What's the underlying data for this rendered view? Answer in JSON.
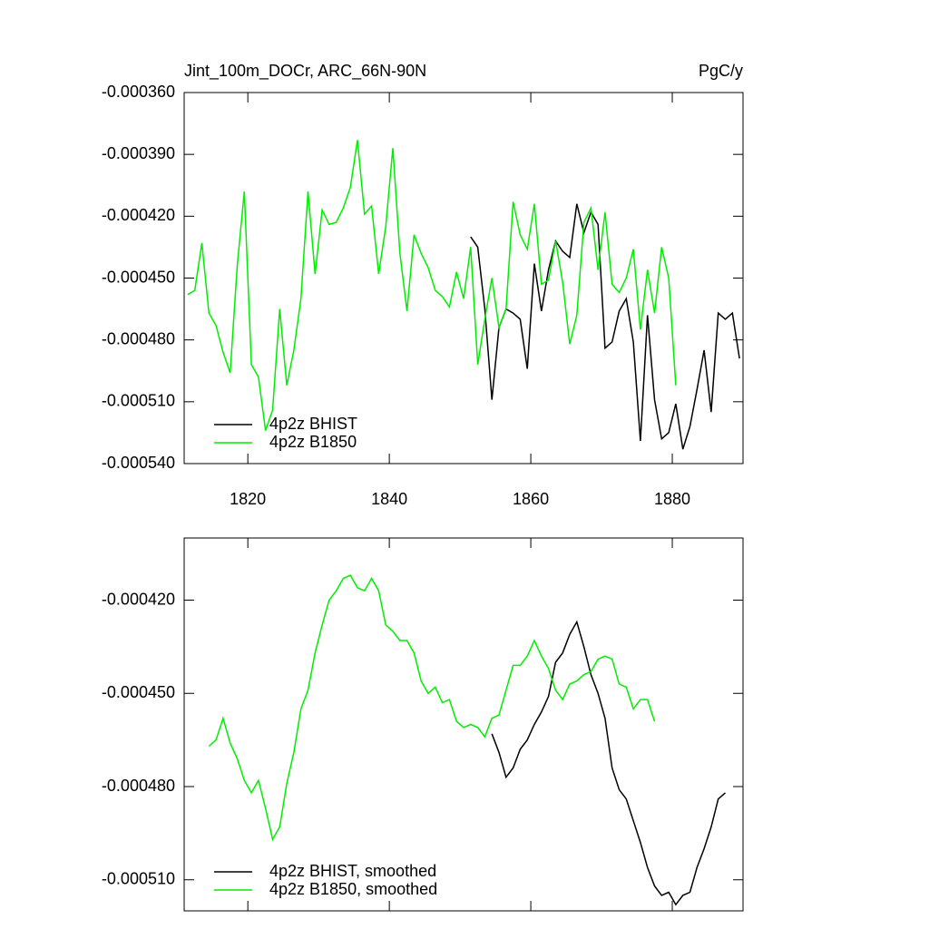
{
  "chart_data": [
    {
      "type": "line",
      "title": "Jint_100m_DOCr, ARC_66N-90N",
      "units": "PgC/y",
      "xlim": [
        1811,
        1890
      ],
      "xticks": [
        1820,
        1840,
        1860,
        1880
      ],
      "xtick_labels": true,
      "ylim": [
        -0.00054,
        -0.00036
      ],
      "yticks": [
        {
          "value": -0.00036,
          "label": "-0.000360"
        },
        {
          "value": -0.00039,
          "label": "-0.000390"
        },
        {
          "value": -0.00042,
          "label": "-0.000420"
        },
        {
          "value": -0.00045,
          "label": "-0.000450"
        },
        {
          "value": -0.00048,
          "label": "-0.000480"
        },
        {
          "value": -0.00051,
          "label": "-0.000510"
        },
        {
          "value": -0.00054,
          "label": "-0.000540"
        }
      ],
      "legend": "lower left",
      "series": [
        {
          "name": "4p2z BHIST",
          "color": "#000000",
          "x": [
            1851.5,
            1852.5,
            1853.5,
            1854.5,
            1855.5,
            1856.5,
            1857.5,
            1858.5,
            1859.5,
            1860.5,
            1861.5,
            1862.5,
            1863.5,
            1864.5,
            1865.5,
            1866.5,
            1867.5,
            1868.5,
            1869.5,
            1870.5,
            1871.5,
            1872.5,
            1873.5,
            1874.5,
            1875.5,
            1876.5,
            1877.5,
            1878.5,
            1879.5,
            1880.5,
            1881.5,
            1882.5,
            1883.5,
            1884.5,
            1885.5,
            1886.5,
            1887.5,
            1888.5,
            1889.5
          ],
          "values": [
            -0.00043,
            -0.000435,
            -0.000465,
            -0.000509,
            -0.000474,
            -0.000465,
            -0.000467,
            -0.00047,
            -0.000494,
            -0.000443,
            -0.000466,
            -0.000446,
            -0.000432,
            -0.000437,
            -0.00044,
            -0.000414,
            -0.000428,
            -0.000418,
            -0.000424,
            -0.000484,
            -0.000481,
            -0.000466,
            -0.00046,
            -0.000481,
            -0.000529,
            -0.000468,
            -0.000509,
            -0.000528,
            -0.000525,
            -0.000511,
            -0.000533,
            -0.000522,
            -0.000504,
            -0.000485,
            -0.000515,
            -0.000467,
            -0.00047,
            -0.000467,
            -0.000489
          ]
        },
        {
          "name": "4p2z B1850",
          "color": "#00ee00",
          "x": [
            1811.5,
            1812.5,
            1813.5,
            1814.5,
            1815.5,
            1816.5,
            1817.5,
            1818.5,
            1819.5,
            1820.5,
            1821.5,
            1822.5,
            1823.5,
            1824.5,
            1825.5,
            1826.5,
            1827.5,
            1828.5,
            1829.5,
            1830.5,
            1831.5,
            1832.5,
            1833.5,
            1834.5,
            1835.5,
            1836.5,
            1837.5,
            1838.5,
            1839.5,
            1840.5,
            1841.5,
            1842.5,
            1843.5,
            1844.5,
            1845.5,
            1846.5,
            1847.5,
            1848.5,
            1849.5,
            1850.5,
            1851.5,
            1852.5,
            1853.5,
            1854.5,
            1855.5,
            1856.5,
            1857.5,
            1858.5,
            1859.5,
            1860.5,
            1861.5,
            1862.5,
            1863.5,
            1864.5,
            1865.5,
            1866.5,
            1867.5,
            1868.5,
            1869.5,
            1870.5,
            1871.5,
            1872.5,
            1873.5,
            1874.5,
            1875.5,
            1876.5,
            1877.5,
            1878.5,
            1879.5,
            1880.5
          ],
          "values": [
            -0.000458,
            -0.000456,
            -0.000433,
            -0.000467,
            -0.000473,
            -0.000486,
            -0.000496,
            -0.000444,
            -0.000408,
            -0.000492,
            -0.000498,
            -0.000524,
            -0.000514,
            -0.000465,
            -0.000502,
            -0.000485,
            -0.00046,
            -0.000408,
            -0.000448,
            -0.000417,
            -0.000424,
            -0.000423,
            -0.000416,
            -0.000406,
            -0.000383,
            -0.000419,
            -0.000415,
            -0.000448,
            -0.000425,
            -0.000387,
            -0.000438,
            -0.000466,
            -0.000429,
            -0.000438,
            -0.000445,
            -0.000456,
            -0.000459,
            -0.000464,
            -0.000447,
            -0.00046,
            -0.000435,
            -0.000492,
            -0.00047,
            -0.00045,
            -0.000474,
            -0.000465,
            -0.000413,
            -0.000429,
            -0.000436,
            -0.000414,
            -0.000453,
            -0.000451,
            -0.000432,
            -0.000452,
            -0.000482,
            -0.000468,
            -0.000423,
            -0.000416,
            -0.000446,
            -0.000418,
            -0.000453,
            -0.000457,
            -0.00045,
            -0.000436,
            -0.000475,
            -0.000446,
            -0.000467,
            -0.000435,
            -0.00045,
            -0.000502
          ]
        }
      ]
    },
    {
      "type": "line",
      "xlim": [
        1811,
        1890
      ],
      "xticks": [
        1820,
        1840,
        1860,
        1880
      ],
      "xtick_labels": false,
      "ylim": [
        -0.00052,
        -0.0004
      ],
      "yticks": [
        {
          "value": -0.00042,
          "label": "-0.000420"
        },
        {
          "value": -0.00045,
          "label": "-0.000450"
        },
        {
          "value": -0.00048,
          "label": "-0.000480"
        },
        {
          "value": -0.00051,
          "label": "-0.000510"
        }
      ],
      "legend": "lower left",
      "series": [
        {
          "name": "4p2z BHIST, smoothed",
          "color": "#000000",
          "x": [
            1854.5,
            1855.5,
            1856.5,
            1857.5,
            1858.5,
            1859.5,
            1860.5,
            1861.5,
            1862.5,
            1863.5,
            1864.5,
            1865.5,
            1866.5,
            1867.5,
            1868.5,
            1869.5,
            1870.5,
            1871.5,
            1872.5,
            1873.5,
            1874.5,
            1875.5,
            1876.5,
            1877.5,
            1878.5,
            1879.5,
            1880.5,
            1881.5,
            1882.5,
            1883.5,
            1884.5,
            1885.5,
            1886.5,
            1887.5
          ],
          "values": [
            -0.000463,
            -0.000469,
            -0.000477,
            -0.000474,
            -0.000468,
            -0.000465,
            -0.00046,
            -0.000456,
            -0.000451,
            -0.00044,
            -0.000437,
            -0.000431,
            -0.000427,
            -0.000435,
            -0.000444,
            -0.00045,
            -0.000458,
            -0.000474,
            -0.000481,
            -0.000484,
            -0.000491,
            -0.000498,
            -0.000506,
            -0.000512,
            -0.000515,
            -0.000514,
            -0.000518,
            -0.000515,
            -0.000514,
            -0.000506,
            -0.0005,
            -0.000493,
            -0.000484,
            -0.000482
          ]
        },
        {
          "name": "4p2z B1850, smoothed",
          "color": "#00ee00",
          "x": [
            1814.5,
            1815.5,
            1816.5,
            1817.5,
            1818.5,
            1819.5,
            1820.5,
            1821.5,
            1822.5,
            1823.5,
            1824.5,
            1825.5,
            1826.5,
            1827.5,
            1828.5,
            1829.5,
            1830.5,
            1831.5,
            1832.5,
            1833.5,
            1834.5,
            1835.5,
            1836.5,
            1837.5,
            1838.5,
            1839.5,
            1840.5,
            1841.5,
            1842.5,
            1843.5,
            1844.5,
            1845.5,
            1846.5,
            1847.5,
            1848.5,
            1849.5,
            1850.5,
            1851.5,
            1852.5,
            1853.5,
            1854.5,
            1855.5,
            1856.5,
            1857.5,
            1858.5,
            1859.5,
            1860.5,
            1861.5,
            1862.5,
            1863.5,
            1864.5,
            1865.5,
            1866.5,
            1867.5,
            1868.5,
            1869.5,
            1870.5,
            1871.5,
            1872.5,
            1873.5,
            1874.5,
            1875.5,
            1876.5,
            1877.5
          ],
          "values": [
            -0.000467,
            -0.000465,
            -0.000458,
            -0.000466,
            -0.000471,
            -0.000478,
            -0.000482,
            -0.000478,
            -0.000487,
            -0.000497,
            -0.000493,
            -0.000479,
            -0.000469,
            -0.000455,
            -0.000449,
            -0.000437,
            -0.000428,
            -0.00042,
            -0.000417,
            -0.000413,
            -0.000412,
            -0.000416,
            -0.000417,
            -0.000413,
            -0.000417,
            -0.000428,
            -0.00043,
            -0.000433,
            -0.000433,
            -0.000437,
            -0.000446,
            -0.00045,
            -0.000448,
            -0.000453,
            -0.000452,
            -0.000459,
            -0.000461,
            -0.00046,
            -0.000461,
            -0.000464,
            -0.000458,
            -0.000457,
            -0.000449,
            -0.000441,
            -0.000441,
            -0.000438,
            -0.000433,
            -0.000438,
            -0.000442,
            -0.000449,
            -0.000452,
            -0.000447,
            -0.000446,
            -0.000444,
            -0.000443,
            -0.000439,
            -0.000438,
            -0.000439,
            -0.000447,
            -0.000448,
            -0.000455,
            -0.000452,
            -0.000452,
            -0.000459
          ]
        }
      ]
    }
  ]
}
